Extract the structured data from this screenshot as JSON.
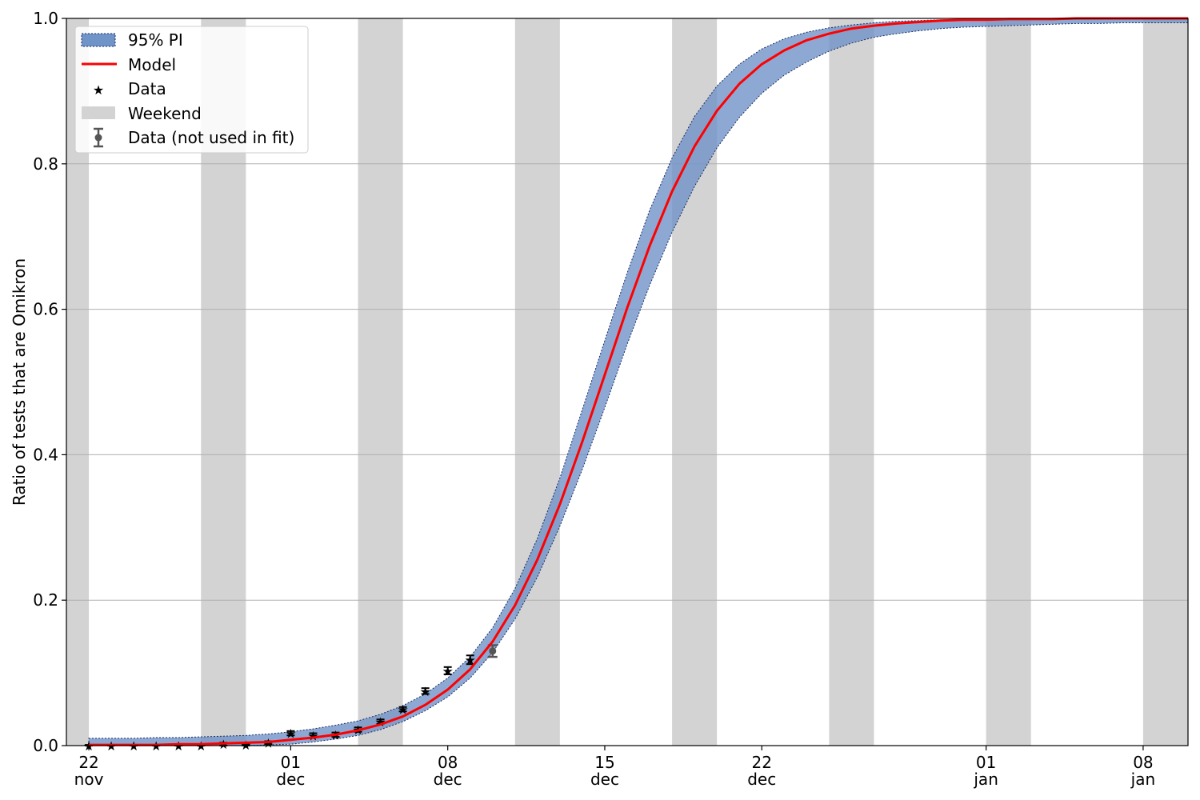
{
  "chart_data": {
    "type": "line",
    "title": "",
    "xlabel": "",
    "ylabel": "Ratio of tests that are Omikron",
    "xlim": [
      "2021-11-21",
      "2022-01-10"
    ],
    "ylim": [
      0,
      1.0
    ],
    "grid": "y-major",
    "legend_placement": "upper-left",
    "x_ticks": [
      {
        "date": "2021-11-22",
        "line1": "22",
        "line2": "nov"
      },
      {
        "date": "2021-12-01",
        "line1": "01",
        "line2": "dec"
      },
      {
        "date": "2021-12-08",
        "line1": "08",
        "line2": "dec"
      },
      {
        "date": "2021-12-15",
        "line1": "15",
        "line2": "dec"
      },
      {
        "date": "2021-12-22",
        "line1": "22",
        "line2": "dec"
      },
      {
        "date": "2022-01-01",
        "line1": "01",
        "line2": "jan"
      },
      {
        "date": "2022-01-08",
        "line1": "08",
        "line2": "jan"
      }
    ],
    "y_ticks": [
      "0.0",
      "0.2",
      "0.4",
      "0.6",
      "0.8",
      "1.0"
    ],
    "legend": {
      "pi": "95% PI",
      "model": "Model",
      "data": "Data",
      "weekend": "Weekend",
      "data_not_fit": "Data (not used in fit)"
    },
    "colors": {
      "pi_fill": "#7094c8",
      "pi_edge": "#1a2a60",
      "model": "#ff0000",
      "data": "#000000",
      "weekend": "#d3d3d3",
      "data_not_fit": "#555555",
      "grid": "#b0b0b0"
    },
    "weekends": [
      [
        "2021-11-20",
        "2021-11-22"
      ],
      [
        "2021-11-27",
        "2021-11-29"
      ],
      [
        "2021-12-04",
        "2021-12-06"
      ],
      [
        "2021-12-11",
        "2021-12-13"
      ],
      [
        "2021-12-18",
        "2021-12-20"
      ],
      [
        "2021-12-25",
        "2021-12-27"
      ],
      [
        "2022-01-01",
        "2022-01-03"
      ],
      [
        "2022-01-08",
        "2022-01-10"
      ]
    ],
    "series": [
      {
        "name": "Model",
        "x": [
          "2021-11-22",
          "2021-11-23",
          "2021-11-24",
          "2021-11-25",
          "2021-11-26",
          "2021-11-27",
          "2021-11-28",
          "2021-11-29",
          "2021-11-30",
          "2021-12-01",
          "2021-12-02",
          "2021-12-03",
          "2021-12-04",
          "2021-12-05",
          "2021-12-06",
          "2021-12-07",
          "2021-12-08",
          "2021-12-09",
          "2021-12-10",
          "2021-12-11",
          "2021-12-12",
          "2021-12-13",
          "2021-12-14",
          "2021-12-15",
          "2021-12-16",
          "2021-12-17",
          "2021-12-18",
          "2021-12-19",
          "2021-12-20",
          "2021-12-21",
          "2021-12-22",
          "2021-12-23",
          "2021-12-24",
          "2021-12-25",
          "2021-12-26",
          "2021-12-27",
          "2021-12-28",
          "2021-12-29",
          "2021-12-30",
          "2021-12-31",
          "2022-01-01",
          "2022-01-02",
          "2022-01-03",
          "2022-01-04",
          "2022-01-05",
          "2022-01-06",
          "2022-01-07",
          "2022-01-08",
          "2022-01-09",
          "2022-01-10"
        ],
        "y": [
          0.001,
          0.001,
          0.001,
          0.001,
          0.002,
          0.002,
          0.003,
          0.004,
          0.005,
          0.008,
          0.011,
          0.015,
          0.021,
          0.029,
          0.04,
          0.056,
          0.077,
          0.105,
          0.143,
          0.193,
          0.256,
          0.332,
          0.418,
          0.51,
          0.602,
          0.687,
          0.762,
          0.824,
          0.873,
          0.91,
          0.937,
          0.956,
          0.97,
          0.979,
          0.986,
          0.99,
          0.993,
          0.995,
          0.997,
          0.998,
          0.998,
          0.999,
          0.999,
          0.999,
          1.0,
          1.0,
          1.0,
          1.0,
          1.0,
          1.0
        ],
        "lower": [
          0.0,
          0.0,
          0.0,
          0.0,
          0.0,
          0.0,
          0.0,
          0.0,
          0.001,
          0.002,
          0.005,
          0.009,
          0.014,
          0.022,
          0.033,
          0.048,
          0.067,
          0.093,
          0.128,
          0.174,
          0.232,
          0.302,
          0.38,
          0.465,
          0.552,
          0.633,
          0.706,
          0.769,
          0.822,
          0.864,
          0.897,
          0.922,
          0.94,
          0.955,
          0.966,
          0.974,
          0.979,
          0.983,
          0.986,
          0.988,
          0.989,
          0.99,
          0.991,
          0.992,
          0.993,
          0.993,
          0.994,
          0.994,
          0.994,
          0.994
        ],
        "upper": [
          0.01,
          0.01,
          0.01,
          0.011,
          0.011,
          0.012,
          0.013,
          0.014,
          0.016,
          0.019,
          0.023,
          0.028,
          0.034,
          0.043,
          0.055,
          0.071,
          0.093,
          0.122,
          0.162,
          0.216,
          0.285,
          0.368,
          0.462,
          0.557,
          0.65,
          0.736,
          0.808,
          0.865,
          0.907,
          0.937,
          0.958,
          0.972,
          0.981,
          0.987,
          0.991,
          0.994,
          0.996,
          0.997,
          0.998,
          0.999,
          0.999,
          1.0,
          1.0,
          1.0,
          1.0,
          1.0,
          1.0,
          1.0,
          1.0,
          1.0
        ]
      },
      {
        "name": "Data",
        "x": [
          "2021-11-22",
          "2021-11-23",
          "2021-11-24",
          "2021-11-25",
          "2021-11-26",
          "2021-11-27",
          "2021-11-28",
          "2021-11-29",
          "2021-11-30",
          "2021-12-01",
          "2021-12-02",
          "2021-12-03",
          "2021-12-04",
          "2021-12-05",
          "2021-12-06",
          "2021-12-07",
          "2021-12-08",
          "2021-12-09"
        ],
        "y": [
          0.0,
          0.0,
          0.0,
          0.0,
          0.0,
          0.0,
          0.002,
          0.001,
          0.004,
          0.017,
          0.014,
          0.015,
          0.022,
          0.033,
          0.05,
          0.075,
          0.103,
          0.118
        ],
        "err": [
          0.001,
          0.001,
          0.001,
          0.001,
          0.001,
          0.001,
          0.002,
          0.002,
          0.002,
          0.003,
          0.003,
          0.003,
          0.003,
          0.003,
          0.003,
          0.004,
          0.005,
          0.006
        ]
      },
      {
        "name": "Data (not used in fit)",
        "x": [
          "2021-12-10"
        ],
        "y": [
          0.13
        ],
        "err": [
          0.008
        ]
      }
    ]
  }
}
